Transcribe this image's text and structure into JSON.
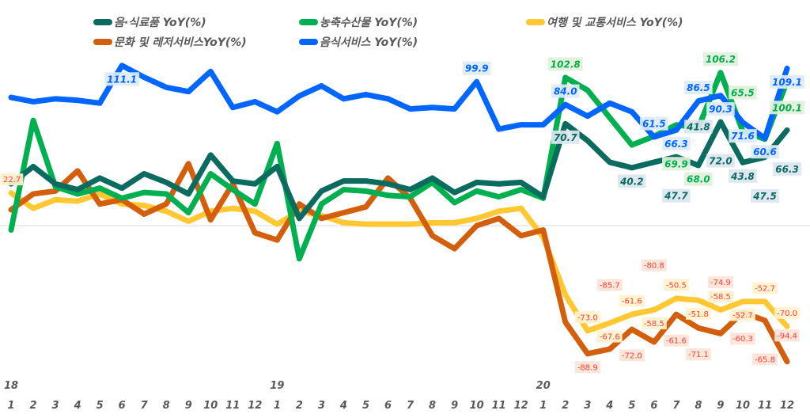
{
  "chart_data": {
    "type": "line",
    "x_years": [
      "18",
      "19",
      "20"
    ],
    "x_months": [
      "1",
      "2",
      "3",
      "4",
      "5",
      "6",
      "7",
      "8",
      "9",
      "10",
      "11",
      "12"
    ],
    "legend_placement": "top",
    "grid": false,
    "zero_line": true,
    "series": [
      {
        "name": "음·식료품 YoY(%)",
        "color": "#0b6b5e",
        "label_bg": "#dce6f0",
        "label_color": "#0b6b5e",
        "values": [
          29,
          41,
          29,
          25,
          33,
          26,
          36,
          30,
          22,
          49,
          31,
          29,
          41,
          5,
          24,
          31,
          31,
          29,
          25,
          33,
          23,
          30,
          29,
          30,
          20,
          70.7,
          59,
          44,
          40.2,
          44,
          47.7,
          41.8,
          72.0,
          43.8,
          47.5,
          66.3
        ],
        "labels": [
          null,
          null,
          null,
          null,
          null,
          null,
          null,
          null,
          null,
          null,
          null,
          null,
          null,
          null,
          null,
          null,
          null,
          null,
          null,
          null,
          null,
          null,
          null,
          null,
          null,
          "70.7",
          null,
          null,
          "40.2",
          null,
          "47.7",
          "41.8",
          "72.0",
          "43.8",
          "47.5",
          "66.3"
        ]
      },
      {
        "name": "농축수산물 YoY(%)",
        "color": "#00b050",
        "label_bg": "#e2f0d9",
        "label_color": "#00b050",
        "values": [
          -3,
          73,
          27,
          22,
          26,
          19,
          23,
          22,
          9,
          36,
          25,
          15,
          57,
          -23,
          15,
          25,
          24,
          21,
          20,
          30,
          16,
          24,
          20,
          25,
          19,
          102.8,
          94,
          75,
          56,
          62,
          69.9,
          68.0,
          106.2,
          65.5,
          60,
          100.1
        ],
        "labels": [
          null,
          null,
          null,
          null,
          null,
          null,
          null,
          null,
          null,
          null,
          null,
          null,
          null,
          null,
          null,
          null,
          null,
          null,
          null,
          null,
          null,
          null,
          null,
          null,
          null,
          "102.8",
          null,
          null,
          null,
          null,
          "69.9",
          "68.0",
          "106.2",
          "65.5",
          null,
          "100.1"
        ]
      },
      {
        "name": "여행 및 교통서비스 YoY(%)",
        "color": "#ffc832",
        "label_bg": "#fff2cc",
        "label_color": "#ff3b3b",
        "values": [
          22.7,
          12,
          18,
          17,
          22,
          15,
          14,
          10,
          3,
          10,
          12,
          10,
          1,
          10,
          7,
          2,
          1,
          1,
          1,
          2,
          2,
          5,
          10,
          12,
          -8,
          -48,
          -73.0,
          -67.6,
          -61.6,
          -58.5,
          -50.5,
          -51.8,
          -58.5,
          -52.7,
          -52.7,
          -70.0
        ],
        "labels": [
          "22.7",
          null,
          null,
          null,
          null,
          null,
          null,
          null,
          null,
          null,
          null,
          null,
          null,
          null,
          null,
          null,
          null,
          null,
          null,
          null,
          null,
          null,
          null,
          null,
          null,
          null,
          "-73.0",
          "-67.6",
          "-61.6",
          "-58.5",
          "-50.5",
          "-51.8",
          "-58.5",
          "-52.7",
          "-52.7",
          "-70.0"
        ]
      },
      {
        "name": "문화 및 레저서비스YoY(%)",
        "color": "#d35f0d",
        "label_bg": "#fce4d6",
        "label_color": "#ff3b3b",
        "values": [
          11,
          22,
          24,
          38,
          15,
          18,
          8,
          15,
          43,
          4,
          29,
          -5,
          -10,
          15,
          5,
          9,
          13,
          33,
          19,
          -7,
          -16,
          0,
          5,
          -7,
          -3,
          -67,
          -88.9,
          -85.7,
          -72.0,
          -80.8,
          -61.6,
          -71.1,
          -74.9,
          -60.3,
          -65.8,
          -94.4
        ],
        "labels": [
          null,
          null,
          null,
          null,
          null,
          null,
          null,
          null,
          null,
          null,
          null,
          null,
          null,
          null,
          null,
          null,
          null,
          null,
          null,
          null,
          null,
          null,
          null,
          null,
          null,
          null,
          "-88.9",
          "-85.7",
          "-72.0",
          "-80.8",
          "-61.6",
          "-71.1",
          "-74.9",
          "-60.3",
          "-65.8",
          "-94.4"
        ]
      },
      {
        "name": "음식서비스 YoY(%)",
        "color": "#0066ff",
        "label_bg": "#ddebf7",
        "label_color": "#0066ff",
        "values": [
          89,
          86,
          88,
          87,
          85,
          111.1,
          103,
          96,
          93,
          107,
          82,
          86,
          79,
          90,
          97,
          88,
          91,
          88,
          81,
          82,
          81,
          99.9,
          67,
          70,
          70,
          84.0,
          76,
          85,
          79,
          61.5,
          66.3,
          86.5,
          90.3,
          71.6,
          60.6,
          109.1
        ],
        "labels": [
          null,
          null,
          null,
          null,
          null,
          "111.1",
          null,
          null,
          null,
          null,
          null,
          null,
          null,
          null,
          null,
          null,
          null,
          null,
          null,
          null,
          null,
          "99.9",
          null,
          null,
          null,
          "84.0",
          null,
          null,
          null,
          "61.5",
          "66.3",
          "86.5",
          "90.3",
          "71.6",
          "60.6",
          "109.1"
        ]
      }
    ]
  }
}
